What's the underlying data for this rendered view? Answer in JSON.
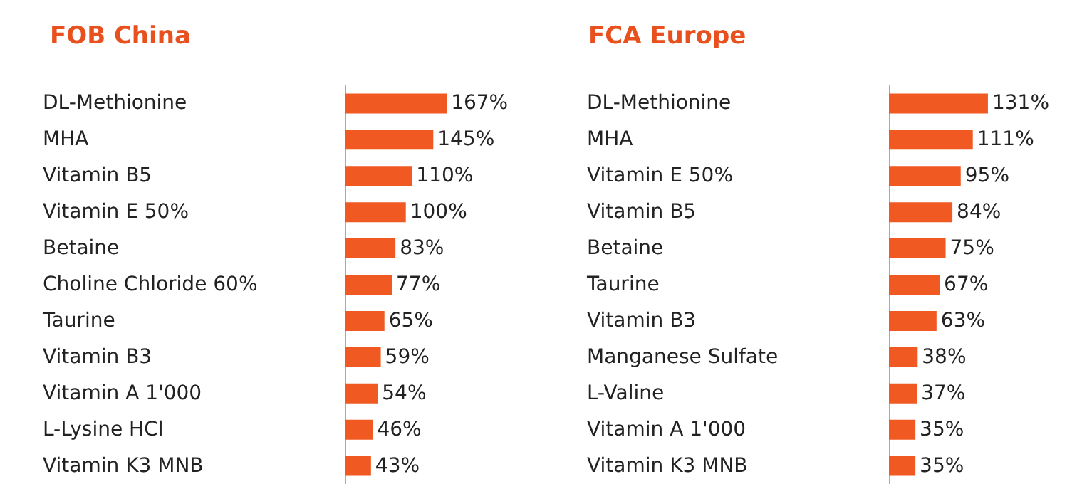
{
  "chart_data": [
    {
      "type": "bar",
      "orientation": "horizontal",
      "title": "FOB China",
      "tick_labels": "y",
      "color": "#f05a22",
      "categories": [
        "DL-Methionine",
        "MHA",
        "Vitamin B5",
        "Vitamin E 50%",
        "Betaine",
        "Choline Chloride 60%",
        "Taurine",
        "Vitamin B3",
        "Vitamin A 1'000",
        "L-Lysine HCl",
        "Vitamin K3 MNB"
      ],
      "values": [
        167,
        145,
        110,
        100,
        83,
        77,
        65,
        59,
        54,
        46,
        43
      ],
      "value_labels": [
        "167%",
        "145%",
        "110%",
        "100%",
        "83%",
        "77%",
        "65%",
        "59%",
        "54%",
        "46%",
        "43%"
      ]
    },
    {
      "type": "bar",
      "orientation": "horizontal",
      "title": "FCA Europe",
      "tick_labels": "y",
      "color": "#f05a22",
      "categories": [
        "DL-Methionine",
        "MHA",
        "Vitamin E 50%",
        "Vitamin B5",
        "Betaine",
        "Taurine",
        "Vitamin B3",
        "Manganese Sulfate",
        "L-Valine",
        "Vitamin A 1'000",
        "Vitamin K3 MNB"
      ],
      "values": [
        131,
        111,
        95,
        84,
        75,
        67,
        63,
        38,
        37,
        35,
        35
      ],
      "value_labels": [
        "131%",
        "111%",
        "95%",
        "84%",
        "75%",
        "67%",
        "63%",
        "38%",
        "37%",
        "35%",
        "35%"
      ]
    }
  ]
}
